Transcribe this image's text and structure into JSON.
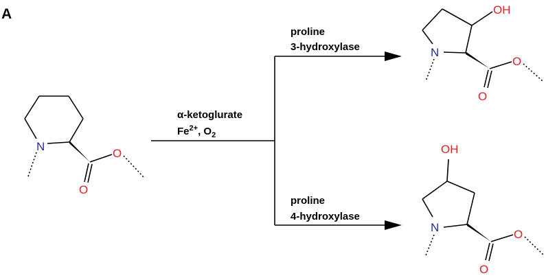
{
  "panel_label": "A",
  "reaction": {
    "cofactors_line1": "α-ketoglurate",
    "cofactors_line2_prefix": "Fe",
    "cofactors_line2_sup": "2+",
    "cofactors_line2_mid": ", O",
    "cofactors_line2_sub": "2"
  },
  "branches": {
    "top": {
      "line1": "proline",
      "line2": "3-hydroxylase"
    },
    "bottom": {
      "line1": "proline",
      "line2": "4-hydroxylase"
    }
  },
  "atoms": {
    "nitrogen": "N",
    "oxygen": "O",
    "hydroxyl": "OH"
  },
  "colors": {
    "nitrogen": "#2a2aa0",
    "oxygen": "#e02020",
    "bond": "#000000"
  }
}
